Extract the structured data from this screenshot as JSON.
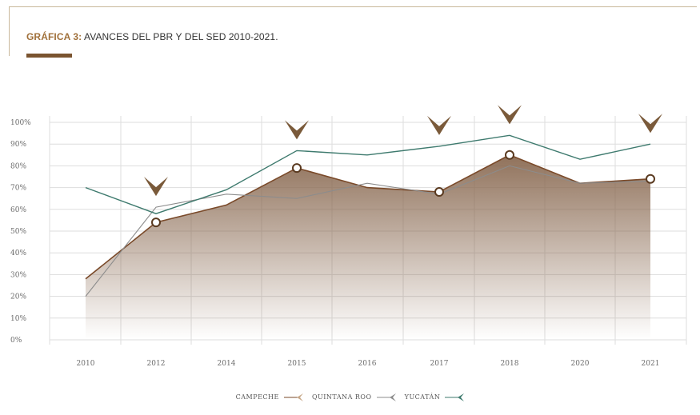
{
  "header": {
    "label": "GRÁFICA 3:",
    "text": "AVANCES DEL PBR  Y DEL SED 2010-2021."
  },
  "colors": {
    "accent": "#a0703a",
    "campeche": "#7a4a2a",
    "quintana_roo": "#8c8c8c",
    "yucatan": "#3e7a6e",
    "arrow": "#7a5a3a",
    "grid": "#dddddd"
  },
  "chart_data": {
    "type": "line",
    "categories": [
      "2010",
      "2012",
      "2014",
      "2015",
      "2016",
      "2017",
      "2018",
      "2020",
      "2021"
    ],
    "ylim": [
      0,
      100
    ],
    "yticks": [
      "0%",
      "10%",
      "20%",
      "30%",
      "40%",
      "50%",
      "60%",
      "70%",
      "80%",
      "90%",
      "100%"
    ],
    "grid": true,
    "legend_position": "bottom",
    "series": [
      {
        "name": "CAMPECHE",
        "values": [
          28,
          54,
          62,
          79,
          70,
          68,
          85,
          72,
          74
        ],
        "style": "area"
      },
      {
        "name": "QUINTANA ROO",
        "values": [
          20,
          61,
          67,
          65,
          72,
          67,
          80,
          72,
          73
        ],
        "style": "line"
      },
      {
        "name": "YUCATÁN",
        "values": [
          70,
          58,
          69,
          87,
          85,
          89,
          94,
          83,
          90
        ],
        "style": "line"
      }
    ],
    "markers": [
      {
        "category": "2012",
        "value": 54
      },
      {
        "category": "2015",
        "value": 79
      },
      {
        "category": "2017",
        "value": 68
      },
      {
        "category": "2018",
        "value": 85
      },
      {
        "category": "2021",
        "value": 74
      }
    ],
    "arrows": [
      "2012",
      "2015",
      "2017",
      "2018",
      "2021"
    ]
  }
}
